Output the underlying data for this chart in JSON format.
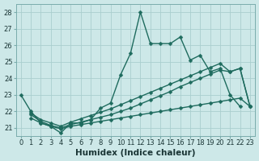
{
  "background_color": "#cde8e8",
  "grid_color": "#aacece",
  "line_color": "#1e6b5e",
  "markersize": 2.5,
  "linewidth": 1.0,
  "xlabel": "Humidex (Indice chaleur)",
  "xlabel_fontsize": 7.5,
  "tick_fontsize": 6,
  "xlim": [
    -0.5,
    23.5
  ],
  "ylim": [
    20.5,
    28.5
  ],
  "yticks": [
    21,
    22,
    23,
    24,
    25,
    26,
    27,
    28
  ],
  "xticks": [
    0,
    1,
    2,
    3,
    4,
    5,
    6,
    7,
    8,
    9,
    10,
    11,
    12,
    13,
    14,
    15,
    16,
    17,
    18,
    19,
    20,
    21,
    22,
    23
  ],
  "series1_x": [
    0,
    1,
    2,
    3,
    4,
    5,
    6,
    7,
    8,
    9,
    10,
    11,
    12,
    13,
    14,
    15,
    16,
    17,
    18,
    19,
    20,
    21,
    22
  ],
  "series1_y": [
    23.0,
    22.0,
    21.3,
    21.1,
    20.7,
    21.3,
    21.3,
    21.5,
    22.2,
    22.5,
    24.2,
    25.5,
    28.0,
    26.1,
    26.1,
    26.1,
    26.5,
    25.1,
    25.4,
    24.4,
    24.6,
    23.0,
    22.3
  ],
  "series2_x": [
    1,
    2,
    3,
    4,
    5,
    6,
    7,
    8,
    9,
    10,
    11,
    12,
    13,
    14,
    15,
    16,
    17,
    18,
    19,
    20,
    21,
    22,
    23
  ],
  "series2_y": [
    21.8,
    21.4,
    21.15,
    21.0,
    21.2,
    21.35,
    21.5,
    21.65,
    21.8,
    22.0,
    22.2,
    22.45,
    22.7,
    22.95,
    23.2,
    23.5,
    23.75,
    24.0,
    24.25,
    24.5,
    24.4,
    24.6,
    22.3
  ],
  "series3_x": [
    1,
    2,
    3,
    4,
    5,
    6,
    7,
    8,
    9,
    10,
    11,
    12,
    13,
    14,
    15,
    16,
    17,
    18,
    19,
    20,
    21,
    22,
    23
  ],
  "series3_y": [
    21.9,
    21.5,
    21.3,
    21.1,
    21.35,
    21.55,
    21.75,
    21.95,
    22.15,
    22.4,
    22.65,
    22.9,
    23.15,
    23.4,
    23.65,
    23.9,
    24.15,
    24.4,
    24.65,
    24.9,
    24.4,
    24.6,
    22.3
  ],
  "series4_x": [
    1,
    2,
    3,
    4,
    5,
    6,
    7,
    8,
    9,
    10,
    11,
    12,
    13,
    14,
    15,
    16,
    17,
    18,
    19,
    20,
    21,
    22,
    23
  ],
  "series4_y": [
    21.6,
    21.3,
    21.1,
    20.95,
    21.1,
    21.2,
    21.3,
    21.4,
    21.5,
    21.6,
    21.7,
    21.8,
    21.9,
    22.0,
    22.1,
    22.2,
    22.3,
    22.4,
    22.5,
    22.6,
    22.7,
    22.8,
    22.3
  ]
}
